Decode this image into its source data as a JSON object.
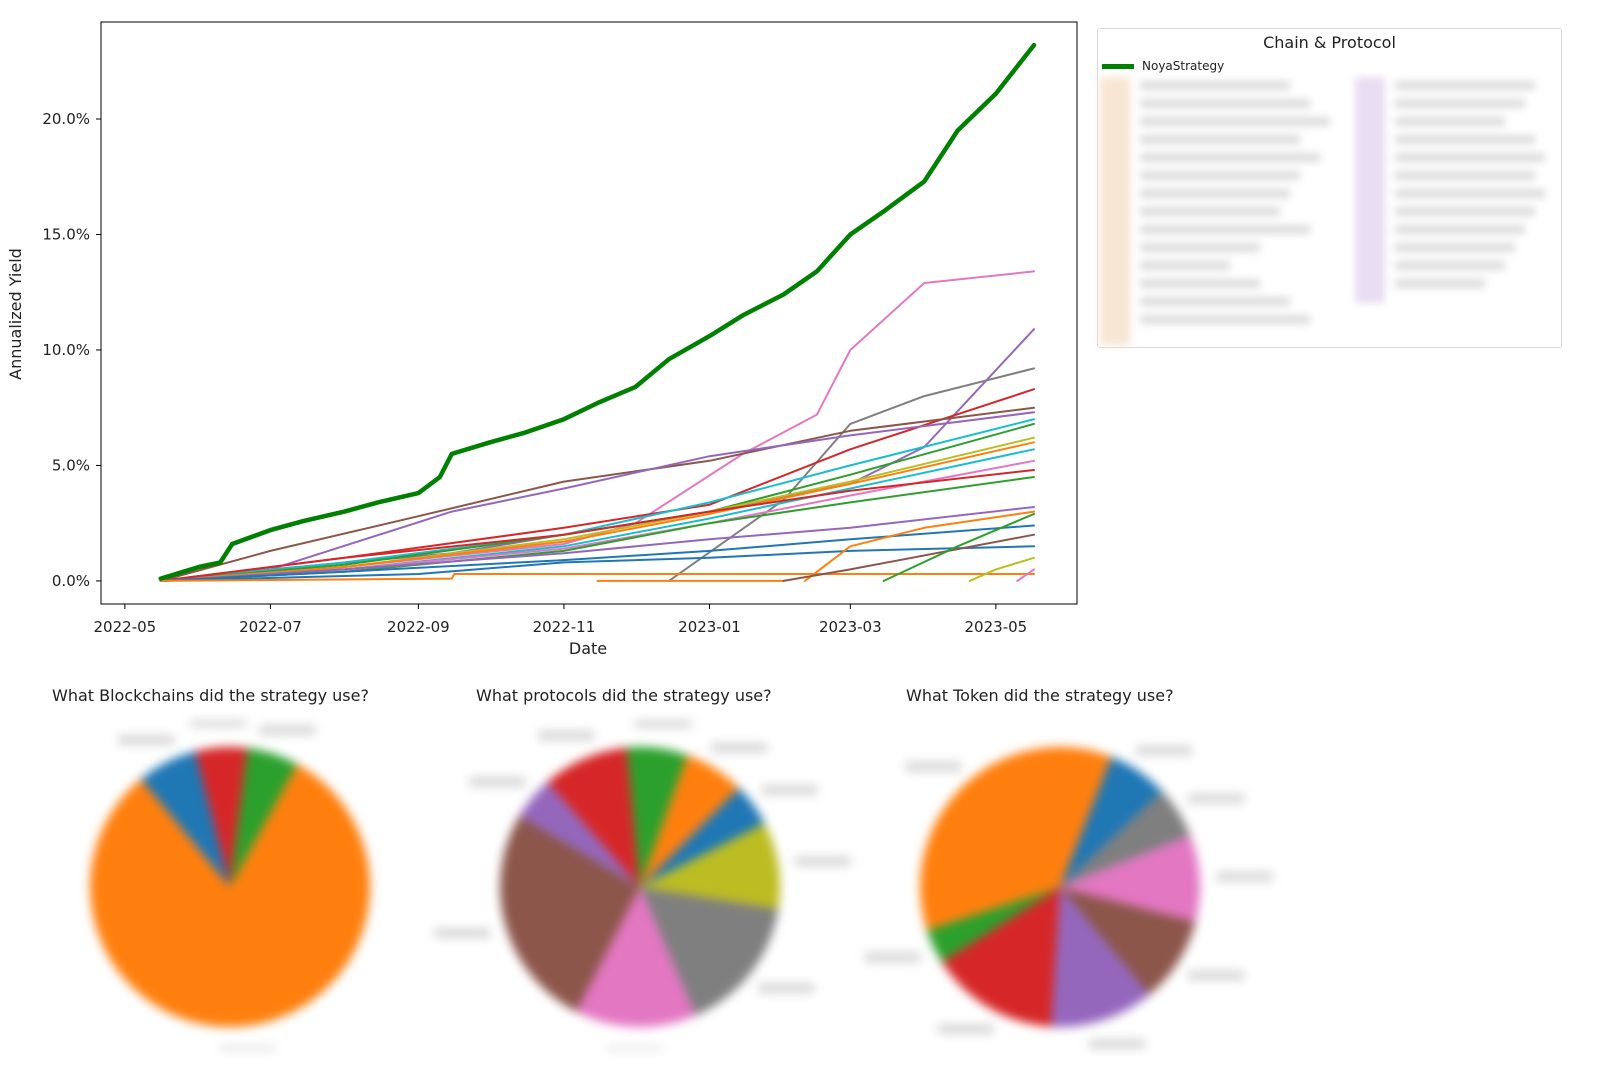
{
  "chart_data": [
    {
      "type": "line",
      "xlabel": "Date",
      "ylabel": "Annualized Yield",
      "x_ticks": [
        "2022-05",
        "2022-07",
        "2022-09",
        "2022-11",
        "2023-01",
        "2023-03",
        "2023-05"
      ],
      "y_ticks": [
        "0.0%",
        "5.0%",
        "10.0%",
        "15.0%",
        "20.0%"
      ],
      "ylim": [
        -1.0,
        24.2
      ],
      "legend": {
        "title": "Chain & Protocol",
        "placement": "outside-right",
        "entries": [
          "NoyaStrategy"
        ]
      },
      "series": [
        {
          "name": "NoyaStrategy",
          "color": "#008000",
          "width": 4.5,
          "x": [
            "2022-05-16",
            "2022-06-01",
            "2022-06-10",
            "2022-06-15",
            "2022-07-01",
            "2022-07-15",
            "2022-08-01",
            "2022-08-15",
            "2022-09-01",
            "2022-09-10",
            "2022-09-15",
            "2022-10-01",
            "2022-10-15",
            "2022-11-01",
            "2022-11-15",
            "2022-12-01",
            "2022-12-15",
            "2023-01-01",
            "2023-01-15",
            "2023-02-01",
            "2023-02-15",
            "2023-03-01",
            "2023-03-15",
            "2023-04-01",
            "2023-04-15",
            "2023-05-01",
            "2023-05-17"
          ],
          "y": [
            0.1,
            0.6,
            0.8,
            1.6,
            2.2,
            2.6,
            3.0,
            3.4,
            3.8,
            4.5,
            5.5,
            6.0,
            6.4,
            7.0,
            7.7,
            8.4,
            9.6,
            10.6,
            11.5,
            12.4,
            13.4,
            15.0,
            16.0,
            17.3,
            19.5,
            21.1,
            23.2
          ]
        },
        {
          "color": "#e377c2",
          "x": [
            "2022-05-16",
            "2022-08-01",
            "2022-11-01",
            "2022-12-01",
            "2023-01-15",
            "2023-02-15",
            "2023-03-01",
            "2023-04-01",
            "2023-05-17"
          ],
          "y": [
            0.0,
            0.6,
            1.6,
            2.5,
            5.5,
            7.2,
            10.0,
            12.9,
            13.4
          ]
        },
        {
          "color": "#9467bd",
          "x": [
            "2022-05-16",
            "2022-07-01",
            "2022-09-15",
            "2022-11-01",
            "2023-01-01",
            "2023-03-01",
            "2023-04-01",
            "2023-05-17"
          ],
          "y": [
            0.0,
            0.5,
            1.2,
            2.0,
            3.0,
            4.2,
            5.8,
            10.9
          ]
        },
        {
          "color": "#7f7f7f",
          "x": [
            "2022-12-15",
            "2023-02-01",
            "2023-03-01",
            "2023-04-01",
            "2023-05-17"
          ],
          "y": [
            0.0,
            3.5,
            6.8,
            8.0,
            9.2
          ]
        },
        {
          "color": "#d62728",
          "x": [
            "2022-05-16",
            "2022-08-01",
            "2022-11-01",
            "2023-01-01",
            "2023-03-01",
            "2023-05-17"
          ],
          "y": [
            0.0,
            1.0,
            2.3,
            3.3,
            5.7,
            8.3
          ]
        },
        {
          "color": "#8c564b",
          "x": [
            "2022-05-16",
            "2022-07-01",
            "2022-09-01",
            "2022-11-01",
            "2023-01-01",
            "2023-03-01",
            "2023-05-17"
          ],
          "y": [
            0.0,
            1.3,
            2.8,
            4.3,
            5.2,
            6.5,
            7.5
          ]
        },
        {
          "color": "#9467bd",
          "x": [
            "2022-05-16",
            "2022-07-01",
            "2022-09-15",
            "2022-11-01",
            "2023-01-01",
            "2023-03-01",
            "2023-05-17"
          ],
          "y": [
            0.0,
            0.5,
            3.0,
            4.0,
            5.4,
            6.3,
            7.3
          ]
        },
        {
          "color": "#17becf",
          "x": [
            "2022-05-16",
            "2022-08-01",
            "2022-11-01",
            "2023-01-01",
            "2023-03-01",
            "2023-05-17"
          ],
          "y": [
            0.0,
            0.8,
            2.0,
            3.4,
            5.0,
            7.0
          ]
        },
        {
          "color": "#2ca02c",
          "x": [
            "2022-05-16",
            "2022-08-01",
            "2022-11-01",
            "2023-01-01",
            "2023-03-01",
            "2023-05-17"
          ],
          "y": [
            0.0,
            0.7,
            2.0,
            3.0,
            4.6,
            6.8
          ]
        },
        {
          "color": "#bcbd22",
          "x": [
            "2022-05-16",
            "2022-08-01",
            "2022-11-01",
            "2023-01-01",
            "2023-03-01",
            "2023-05-17"
          ],
          "y": [
            0.0,
            0.6,
            1.8,
            3.0,
            4.3,
            6.2
          ]
        },
        {
          "color": "#ff7f0e",
          "x": [
            "2022-05-16",
            "2022-08-01",
            "2022-11-01",
            "2023-01-01",
            "2023-03-01",
            "2023-05-17"
          ],
          "y": [
            0.0,
            0.6,
            1.7,
            2.9,
            4.2,
            6.0
          ]
        },
        {
          "color": "#17becf",
          "x": [
            "2022-05-16",
            "2022-08-01",
            "2022-11-01",
            "2023-01-01",
            "2023-03-01",
            "2023-05-17"
          ],
          "y": [
            0.0,
            0.5,
            1.5,
            2.7,
            4.0,
            5.7
          ]
        },
        {
          "color": "#e377c2",
          "x": [
            "2022-05-16",
            "2022-08-01",
            "2022-11-01",
            "2023-01-01",
            "2023-03-01",
            "2023-05-17"
          ],
          "y": [
            0.0,
            0.5,
            1.4,
            2.5,
            3.7,
            5.2
          ]
        },
        {
          "color": "#d62728",
          "x": [
            "2022-05-16",
            "2022-08-01",
            "2022-11-01",
            "2023-01-01",
            "2023-03-01",
            "2023-05-17"
          ],
          "y": [
            0.0,
            1.0,
            2.0,
            3.0,
            3.9,
            4.8
          ]
        },
        {
          "color": "#2ca02c",
          "x": [
            "2022-05-16",
            "2022-08-01",
            "2022-11-01",
            "2023-01-01",
            "2023-03-01",
            "2023-05-17"
          ],
          "y": [
            0.0,
            0.4,
            1.3,
            2.5,
            3.4,
            4.5
          ]
        },
        {
          "color": "#9467bd",
          "x": [
            "2022-05-16",
            "2022-08-01",
            "2022-11-01",
            "2023-01-01",
            "2023-03-01",
            "2023-05-17"
          ],
          "y": [
            0.0,
            0.5,
            1.2,
            1.8,
            2.3,
            3.2
          ]
        },
        {
          "color": "#1f77b4",
          "x": [
            "2022-05-16",
            "2022-08-01",
            "2022-11-01",
            "2023-01-01",
            "2023-03-01",
            "2023-05-17"
          ],
          "y": [
            0.0,
            0.4,
            0.9,
            1.3,
            1.8,
            2.4
          ]
        },
        {
          "color": "#1f77b4",
          "x": [
            "2022-05-16",
            "2022-09-01",
            "2022-11-01",
            "2023-01-01",
            "2023-03-01",
            "2023-05-17"
          ],
          "y": [
            0.0,
            0.3,
            0.8,
            1.0,
            1.3,
            1.5
          ]
        },
        {
          "color": "#ff7f0e",
          "x": [
            "2022-05-16",
            "2022-09-15",
            "2022-09-16",
            "2023-05-17"
          ],
          "y": [
            0.0,
            0.1,
            0.3,
            0.3
          ]
        },
        {
          "color": "#ff7f0e",
          "x": [
            "2022-11-15",
            "2023-02-01"
          ],
          "y": [
            0.0,
            0.0
          ]
        },
        {
          "color": "#ff7f0e",
          "x": [
            "2023-02-10",
            "2023-03-01",
            "2023-04-01",
            "2023-05-17"
          ],
          "y": [
            0.0,
            1.5,
            2.3,
            3.0
          ]
        },
        {
          "color": "#8c564b",
          "x": [
            "2023-02-01",
            "2023-03-01",
            "2023-05-17"
          ],
          "y": [
            0.0,
            0.5,
            2.0
          ]
        },
        {
          "color": "#2ca02c",
          "x": [
            "2023-03-15",
            "2023-04-15",
            "2023-05-17"
          ],
          "y": [
            0.0,
            1.5,
            2.9
          ]
        },
        {
          "color": "#bcbd22",
          "x": [
            "2023-04-20",
            "2023-05-01",
            "2023-05-17"
          ],
          "y": [
            0.0,
            0.5,
            1.0
          ]
        },
        {
          "color": "#e377c2",
          "x": [
            "2023-05-10",
            "2023-05-17"
          ],
          "y": [
            0.0,
            0.5
          ]
        }
      ]
    },
    {
      "type": "pie",
      "title": "What Blockchains did the strategy use?",
      "values": [
        7,
        6,
        6,
        81
      ],
      "colors": [
        "#1f77b4",
        "#d62728",
        "#2ca02c",
        "#ff7f0e"
      ]
    },
    {
      "type": "pie",
      "title": "What protocols did the strategy use?",
      "values": [
        5,
        10,
        16,
        14,
        26,
        5,
        10,
        7,
        7
      ],
      "colors": [
        "#1f77b4",
        "#bcbd22",
        "#7f7f7f",
        "#e377c2",
        "#8c564b",
        "#9467bd",
        "#d62728",
        "#2ca02c",
        "#ff7f0e"
      ]
    },
    {
      "type": "pie",
      "title": "What Token did the strategy use?",
      "values": [
        7,
        6,
        10,
        10,
        12,
        15,
        4,
        36
      ],
      "colors": [
        "#1f77b4",
        "#7f7f7f",
        "#e377c2",
        "#8c564b",
        "#9467bd",
        "#d62728",
        "#2ca02c",
        "#ff7f0e"
      ]
    }
  ]
}
